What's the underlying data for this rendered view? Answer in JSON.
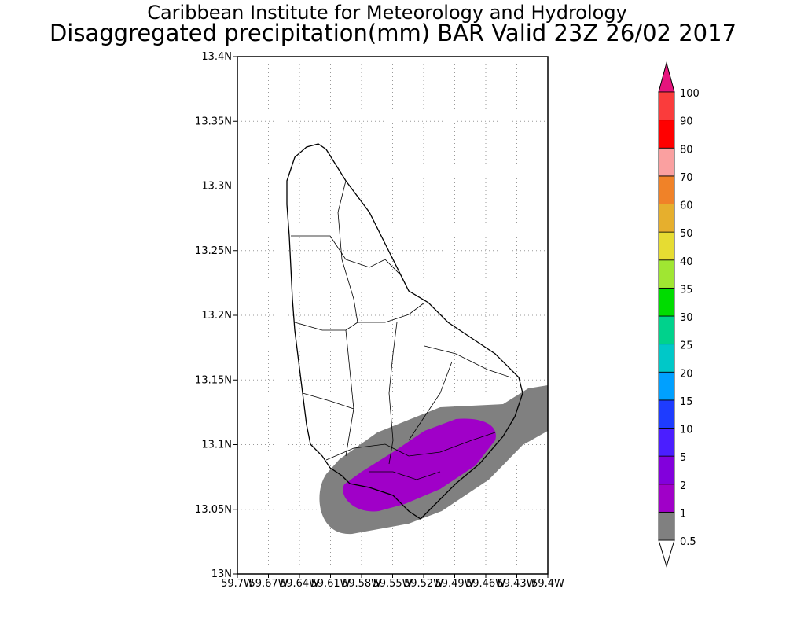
{
  "title_line1": "Caribbean Institute for Meteorology and Hydrology",
  "title_line2": "Disaggregated precipitation(mm) BAR Valid 23Z 26/02 2017",
  "map": {
    "lon_range": [
      -59.7,
      -59.4
    ],
    "lat_range": [
      13.0,
      13.4
    ],
    "lon_labels": [
      "59.7W",
      "59.67W",
      "59.64W",
      "59.61W",
      "59.58W",
      "59.55W",
      "59.52W",
      "59.49W",
      "59.46W",
      "59.43W",
      "59.4W"
    ],
    "lat_labels": [
      "13N",
      "13.05N",
      "13.1N",
      "13.15N",
      "13.2N",
      "13.25N",
      "13.3N",
      "13.35N",
      "13.4N"
    ],
    "region": "Barbados",
    "shaded_levels_present": [
      "0.5-1",
      "1-2"
    ]
  },
  "colorbar": {
    "labels": [
      "0.5",
      "1",
      "2",
      "5",
      "10",
      "15",
      "20",
      "25",
      "30",
      "35",
      "40",
      "50",
      "60",
      "70",
      "80",
      "90",
      "100"
    ],
    "colors": [
      "#808080",
      "#a000c8",
      "#8200dc",
      "#4b1eff",
      "#1e3cff",
      "#00a0ff",
      "#00c8c8",
      "#00d28c",
      "#00dc00",
      "#a0e632",
      "#e6dc32",
      "#e6af2d",
      "#f08228",
      "#faa0a0",
      "#ff0000",
      "#fa3c3c"
    ],
    "over_color": "#e6147d",
    "under_color": "#ffffff"
  }
}
